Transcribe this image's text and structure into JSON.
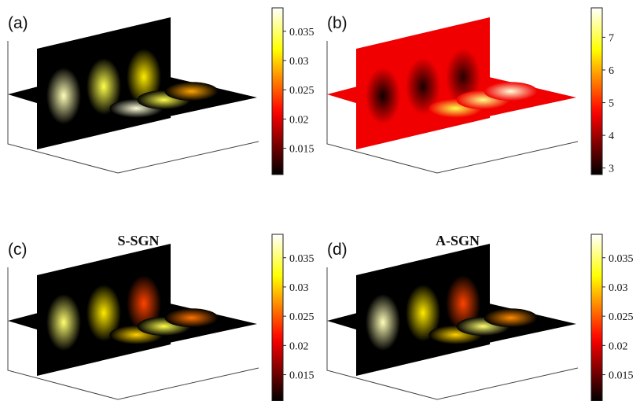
{
  "chart_data": [
    {
      "type": "heatmap",
      "panel_label": "(a)",
      "title": "",
      "colormap": "hot",
      "clim": [
        0.0105,
        0.039
      ],
      "colorbar_ticks": [
        "0.035",
        "0.03",
        "0.025",
        "0.02",
        "0.015"
      ],
      "colorbar_tick_values": [
        0.035,
        0.03,
        0.025,
        0.02,
        0.015
      ],
      "slices": {
        "vertical_blobs": [
          {
            "center": 0.2,
            "peak": 0.037
          },
          {
            "center": 0.5,
            "peak": 0.034
          },
          {
            "center": 0.8,
            "peak": 0.031
          }
        ],
        "horizontal_blobs": [
          {
            "center": 0.2,
            "peak": 0.038
          },
          {
            "center": 0.5,
            "peak": 0.034
          },
          {
            "center": 0.8,
            "peak": 0.028
          }
        ],
        "background": 0.0105
      }
    },
    {
      "type": "heatmap",
      "panel_label": "(b)",
      "title": "",
      "colormap": "hot",
      "clim": [
        2.8,
        7.9
      ],
      "colorbar_ticks": [
        "7",
        "6",
        "5",
        "4",
        "3"
      ],
      "colorbar_tick_values": [
        7,
        6,
        5,
        4,
        3
      ],
      "slices": {
        "vertical_blobs": [
          {
            "center": 0.2,
            "peak": 2.9
          },
          {
            "center": 0.5,
            "peak": 3.0
          },
          {
            "center": 0.8,
            "peak": 3.1
          }
        ],
        "horizontal_blobs": [
          {
            "center": 0.2,
            "peak": 7.0
          },
          {
            "center": 0.5,
            "peak": 7.3
          },
          {
            "center": 0.8,
            "peak": 7.7
          }
        ],
        "background": 4.6
      }
    },
    {
      "type": "heatmap",
      "panel_label": "(c)",
      "title": "S-SGN",
      "colormap": "hot",
      "clim": [
        0.0105,
        0.039
      ],
      "colorbar_ticks": [
        "0.035",
        "0.03",
        "0.025",
        "0.02",
        "0.015"
      ],
      "colorbar_tick_values": [
        0.035,
        0.03,
        0.025,
        0.02,
        0.015
      ],
      "slices": {
        "vertical_blobs": [
          {
            "center": 0.2,
            "peak": 0.035
          },
          {
            "center": 0.5,
            "peak": 0.031
          },
          {
            "center": 0.8,
            "peak": 0.024
          }
        ],
        "horizontal_blobs": [
          {
            "center": 0.2,
            "peak": 0.03
          },
          {
            "center": 0.5,
            "peak": 0.034
          },
          {
            "center": 0.8,
            "peak": 0.026
          }
        ],
        "background": 0.0105
      }
    },
    {
      "type": "heatmap",
      "panel_label": "(d)",
      "title": "A-SGN",
      "colormap": "hot",
      "clim": [
        0.0105,
        0.039
      ],
      "colorbar_ticks": [
        "0.035",
        "0.03",
        "0.025",
        "0.02",
        "0.015"
      ],
      "colorbar_tick_values": [
        0.035,
        0.03,
        0.025,
        0.02,
        0.015
      ],
      "slices": {
        "vertical_blobs": [
          {
            "center": 0.2,
            "peak": 0.037
          },
          {
            "center": 0.5,
            "peak": 0.031
          },
          {
            "center": 0.8,
            "peak": 0.024
          }
        ],
        "horizontal_blobs": [
          {
            "center": 0.2,
            "peak": 0.03
          },
          {
            "center": 0.5,
            "peak": 0.035
          },
          {
            "center": 0.8,
            "peak": 0.027
          }
        ],
        "background": 0.0105
      }
    }
  ]
}
